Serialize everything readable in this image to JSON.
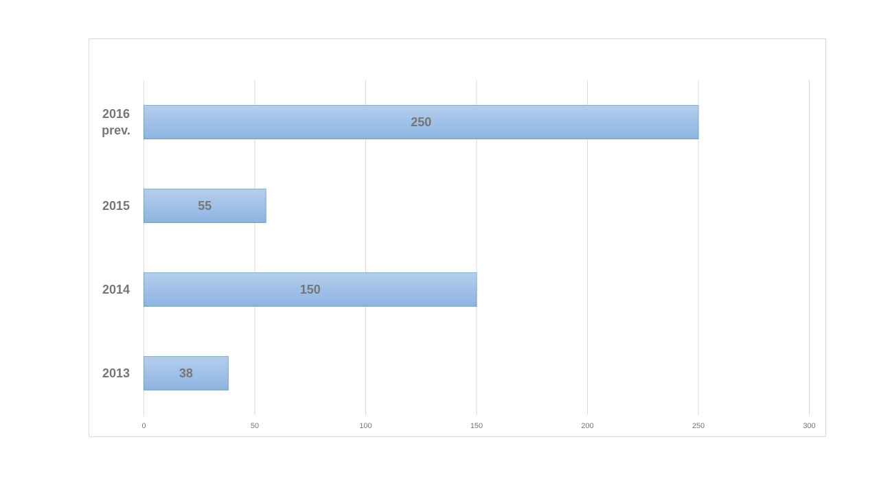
{
  "chart_data": {
    "type": "bar",
    "orientation": "horizontal",
    "categories": [
      "2013",
      "2014",
      "2015",
      "2016 prev."
    ],
    "values": [
      38,
      150,
      55,
      250
    ],
    "color": "#8db4e2",
    "xlim": [
      0,
      300
    ],
    "xticks": [
      0,
      50,
      100,
      150,
      200,
      250,
      300
    ],
    "grid": true
  }
}
